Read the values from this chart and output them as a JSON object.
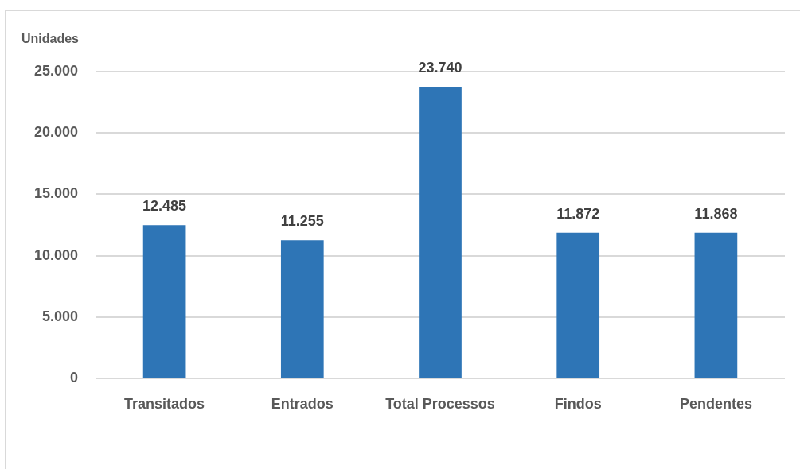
{
  "chart_data": {
    "type": "bar",
    "ylabel": "Unidades",
    "categories": [
      "Transitados",
      "Entrados",
      "Total Processos",
      "Findos",
      "Pendentes"
    ],
    "values": [
      12485,
      11255,
      23740,
      11872,
      11868
    ],
    "color": "#2e75b6",
    "value_labels": [
      "12.485",
      "11.255",
      "23.740",
      "11.872",
      "11.868"
    ],
    "ylim": [
      0,
      25000
    ],
    "yticks": [
      {
        "value": 0,
        "label": "0"
      },
      {
        "value": 5000,
        "label": "5.000"
      },
      {
        "value": 10000,
        "label": "10.000"
      },
      {
        "value": 15000,
        "label": "15.000"
      },
      {
        "value": 20000,
        "label": "20.000"
      },
      {
        "value": 25000,
        "label": "25.000"
      }
    ],
    "grid": "y"
  }
}
